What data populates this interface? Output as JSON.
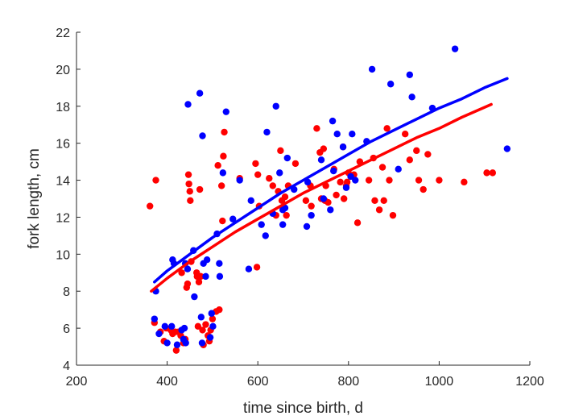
{
  "chart_data": {
    "type": "scatter",
    "xlabel": "time since birth, d",
    "ylabel": "fork length, cm",
    "xlim": [
      200,
      1200
    ],
    "ylim": [
      4,
      22
    ],
    "xticks": [
      200,
      400,
      600,
      800,
      1000,
      1200
    ],
    "yticks": [
      4,
      6,
      8,
      10,
      12,
      14,
      16,
      18,
      20,
      22
    ],
    "xtick_labels": [
      "200",
      "400",
      "600",
      "800",
      "1000",
      "1200"
    ],
    "ytick_labels": [
      "4",
      "6",
      "8",
      "10",
      "12",
      "14",
      "16",
      "18",
      "20",
      "22"
    ],
    "grid": false,
    "legend": "none",
    "series": [
      {
        "color": "#ff0000",
        "points": [
          [
            362,
            12.6
          ],
          [
            372,
            6.3
          ],
          [
            375,
            14.0
          ],
          [
            385,
            5.8
          ],
          [
            393,
            5.3
          ],
          [
            398,
            6.0
          ],
          [
            408,
            5.9
          ],
          [
            412,
            5.7
          ],
          [
            418,
            5.8
          ],
          [
            420,
            4.8
          ],
          [
            425,
            5.8
          ],
          [
            430,
            5.6
          ],
          [
            432,
            9.0
          ],
          [
            436,
            5.2
          ],
          [
            440,
            5.4
          ],
          [
            443,
            8.2
          ],
          [
            445,
            8.4
          ],
          [
            447,
            14.3
          ],
          [
            448,
            13.8
          ],
          [
            450,
            13.4
          ],
          [
            451,
            12.9
          ],
          [
            453,
            9.6
          ],
          [
            465,
            9.0
          ],
          [
            466,
            8.8
          ],
          [
            468,
            6.1
          ],
          [
            470,
            8.5
          ],
          [
            472,
            13.5
          ],
          [
            474,
            8.8
          ],
          [
            478,
            5.9
          ],
          [
            480,
            5.1
          ],
          [
            485,
            6.2
          ],
          [
            490,
            5.6
          ],
          [
            493,
            5.3
          ],
          [
            496,
            5.9
          ],
          [
            500,
            6.5
          ],
          [
            508,
            6.9
          ],
          [
            512,
            14.8
          ],
          [
            515,
            7.0
          ],
          [
            520,
            13.7
          ],
          [
            522,
            11.8
          ],
          [
            524,
            15.3
          ],
          [
            526,
            16.6
          ],
          [
            560,
            14.1
          ],
          [
            595,
            14.9
          ],
          [
            598,
            9.3
          ],
          [
            600,
            14.3
          ],
          [
            603,
            12.6
          ],
          [
            625,
            14.1
          ],
          [
            633,
            13.7
          ],
          [
            640,
            12.1
          ],
          [
            645,
            13.4
          ],
          [
            650,
            15.6
          ],
          [
            653,
            12.9
          ],
          [
            660,
            13.1
          ],
          [
            663,
            12.1
          ],
          [
            667,
            13.7
          ],
          [
            683,
            14.9
          ],
          [
            706,
            12.9
          ],
          [
            716,
            13.7
          ],
          [
            718,
            12.6
          ],
          [
            730,
            16.8
          ],
          [
            737,
            15.5
          ],
          [
            740,
            13.0
          ],
          [
            745,
            15.7
          ],
          [
            748,
            12.9
          ],
          [
            750,
            13.7
          ],
          [
            755,
            12.8
          ],
          [
            768,
            14.6
          ],
          [
            773,
            13.2
          ],
          [
            782,
            13.9
          ],
          [
            788,
            15.8
          ],
          [
            790,
            13.0
          ],
          [
            795,
            13.7
          ],
          [
            797,
            13.9
          ],
          [
            800,
            14.4
          ],
          [
            805,
            14.2
          ],
          [
            812,
            14.3
          ],
          [
            820,
            11.7
          ],
          [
            825,
            15.0
          ],
          [
            845,
            14.0
          ],
          [
            855,
            15.2
          ],
          [
            858,
            12.9
          ],
          [
            868,
            12.4
          ],
          [
            875,
            14.7
          ],
          [
            878,
            12.9
          ],
          [
            885,
            16.8
          ],
          [
            890,
            14.0
          ],
          [
            898,
            12.1
          ],
          [
            925,
            16.5
          ],
          [
            935,
            15.1
          ],
          [
            950,
            15.6
          ],
          [
            955,
            14.0
          ],
          [
            965,
            13.5
          ],
          [
            975,
            15.4
          ],
          [
            1000,
            14.0
          ],
          [
            1055,
            13.9
          ],
          [
            1105,
            14.4
          ],
          [
            1118,
            14.4
          ]
        ]
      },
      {
        "color": "#0000ff",
        "points": [
          [
            372,
            6.5
          ],
          [
            375,
            8.0
          ],
          [
            382,
            5.7
          ],
          [
            395,
            6.1
          ],
          [
            400,
            5.2
          ],
          [
            410,
            6.1
          ],
          [
            412,
            9.7
          ],
          [
            415,
            9.5
          ],
          [
            422,
            5.1
          ],
          [
            432,
            5.9
          ],
          [
            436,
            5.4
          ],
          [
            438,
            6.0
          ],
          [
            440,
            9.5
          ],
          [
            441,
            5.2
          ],
          [
            445,
            9.2
          ],
          [
            446,
            18.1
          ],
          [
            458,
            10.2
          ],
          [
            460,
            7.7
          ],
          [
            472,
            18.7
          ],
          [
            475,
            6.6
          ],
          [
            477,
            5.2
          ],
          [
            478,
            16.4
          ],
          [
            480,
            9.5
          ],
          [
            485,
            8.8
          ],
          [
            488,
            9.7
          ],
          [
            495,
            5.5
          ],
          [
            498,
            6.8
          ],
          [
            501,
            6.1
          ],
          [
            510,
            11.1
          ],
          [
            515,
            9.5
          ],
          [
            516,
            8.8
          ],
          [
            523,
            14.4
          ],
          [
            530,
            17.7
          ],
          [
            545,
            11.9
          ],
          [
            560,
            14.0
          ],
          [
            580,
            9.2
          ],
          [
            585,
            12.9
          ],
          [
            608,
            11.6
          ],
          [
            617,
            11.0
          ],
          [
            620,
            16.6
          ],
          [
            633,
            12.2
          ],
          [
            640,
            18.0
          ],
          [
            648,
            14.4
          ],
          [
            655,
            11.6
          ],
          [
            655,
            12.4
          ],
          [
            660,
            12.5
          ],
          [
            665,
            15.2
          ],
          [
            680,
            13.5
          ],
          [
            708,
            11.5
          ],
          [
            710,
            13.9
          ],
          [
            718,
            12.1
          ],
          [
            740,
            15.1
          ],
          [
            745,
            13.0
          ],
          [
            760,
            12.4
          ],
          [
            765,
            17.2
          ],
          [
            767,
            14.5
          ],
          [
            775,
            16.5
          ],
          [
            788,
            15.8
          ],
          [
            795,
            13.6
          ],
          [
            805,
            14.2
          ],
          [
            808,
            16.5
          ],
          [
            815,
            14.0
          ],
          [
            840,
            16.1
          ],
          [
            852,
            20.0
          ],
          [
            910,
            14.6
          ],
          [
            935,
            19.7
          ],
          [
            940,
            18.5
          ],
          [
            985,
            17.9
          ],
          [
            1035,
            21.1
          ],
          [
            1150,
            15.7
          ],
          [
            893,
            19.2
          ]
        ]
      }
    ],
    "fits": [
      {
        "color": "#ff0000",
        "x": [
          365,
          400,
          450,
          500,
          550,
          600,
          650,
          700,
          750,
          800,
          850,
          900,
          950,
          1000,
          1050,
          1115
        ],
        "y": [
          8.0,
          8.7,
          9.6,
          10.4,
          11.2,
          11.9,
          12.6,
          13.3,
          13.9,
          14.5,
          15.1,
          15.7,
          16.3,
          16.8,
          17.4,
          18.1
        ]
      },
      {
        "color": "#0000ff",
        "x": [
          372,
          400,
          450,
          500,
          550,
          600,
          650,
          700,
          750,
          800,
          850,
          900,
          950,
          1000,
          1050,
          1100,
          1150
        ],
        "y": [
          8.5,
          9.1,
          10.0,
          10.9,
          11.7,
          12.5,
          13.3,
          14.0,
          14.7,
          15.4,
          16.1,
          16.7,
          17.3,
          17.9,
          18.4,
          19.0,
          19.5
        ]
      }
    ]
  }
}
